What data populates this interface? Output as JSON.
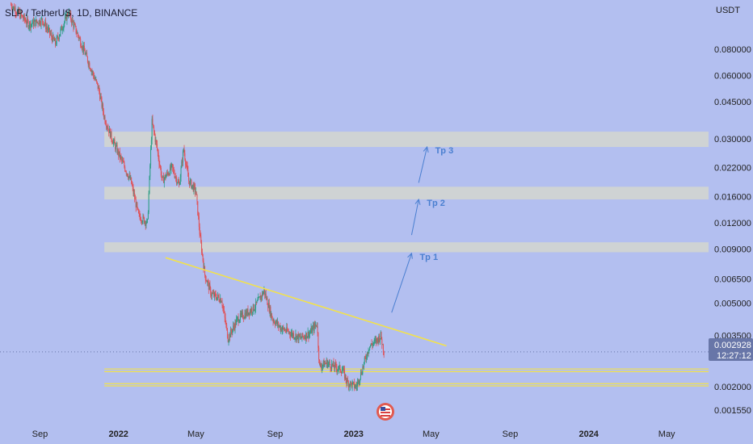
{
  "header": {
    "title": "SLP / TetherUS, 1D, BINANCE"
  },
  "currency_label": "USDT",
  "current_price": "0.002928",
  "countdown": "12:27:12",
  "flag_icon": "us-flag-icon",
  "colors": {
    "background": "#b3bff0",
    "up": "#2e9e86",
    "down": "#e05258",
    "zone": "#d4d6cf",
    "trendline": "#f3e24a",
    "arrow": "#4a7fd0",
    "price_tag": "#6876a8"
  },
  "chart_data": {
    "type": "candlestick",
    "title": "SLP / TetherUS, 1D, BINANCE",
    "y_scale": "log",
    "ylim": [
      0.00137,
      0.137
    ],
    "y_ticks": [
      "0.080000",
      "0.060000",
      "0.045000",
      "0.030000",
      "0.022000",
      "0.016000",
      "0.012000",
      "0.009000",
      "0.006500",
      "0.005000",
      "0.003500",
      "0.002000",
      "0.001550"
    ],
    "x_ticks": [
      "Sep",
      "2022",
      "May",
      "Sep",
      "2023",
      "May",
      "Sep",
      "2024",
      "May"
    ],
    "bold_x_ticks": [
      "2022",
      "2023",
      "2024"
    ],
    "xlim": [
      "2021-07-01",
      "2024-07-05"
    ],
    "price_path": [
      [
        "2021-07-18",
        0.13
      ],
      [
        "2021-08-15",
        0.105
      ],
      [
        "2021-09-05",
        0.11
      ],
      [
        "2021-09-25",
        0.085
      ],
      [
        "2021-10-15",
        0.12
      ],
      [
        "2021-11-01",
        0.09
      ],
      [
        "2021-11-15",
        0.07
      ],
      [
        "2021-12-01",
        0.052
      ],
      [
        "2021-12-10",
        0.038
      ],
      [
        "2021-12-22",
        0.03
      ],
      [
        "2022-01-05",
        0.024
      ],
      [
        "2022-01-20",
        0.019
      ],
      [
        "2022-02-01",
        0.013
      ],
      [
        "2022-02-15",
        0.012
      ],
      [
        "2022-02-22",
        0.036
      ],
      [
        "2022-03-01",
        0.028
      ],
      [
        "2022-03-10",
        0.019
      ],
      [
        "2022-03-25",
        0.022
      ],
      [
        "2022-04-05",
        0.018
      ],
      [
        "2022-04-12",
        0.027
      ],
      [
        "2022-04-20",
        0.019
      ],
      [
        "2022-05-01",
        0.017
      ],
      [
        "2022-05-08",
        0.01
      ],
      [
        "2022-05-15",
        0.0068
      ],
      [
        "2022-05-25",
        0.0055
      ],
      [
        "2022-06-10",
        0.0052
      ],
      [
        "2022-06-20",
        0.0034
      ],
      [
        "2022-07-05",
        0.0042
      ],
      [
        "2022-07-20",
        0.0045
      ],
      [
        "2022-08-01",
        0.0048
      ],
      [
        "2022-08-15",
        0.0057
      ],
      [
        "2022-08-28",
        0.0042
      ],
      [
        "2022-09-10",
        0.0038
      ],
      [
        "2022-09-25",
        0.0036
      ],
      [
        "2022-10-10",
        0.0034
      ],
      [
        "2022-10-25",
        0.0036
      ],
      [
        "2022-11-05",
        0.004
      ],
      [
        "2022-11-09",
        0.0025
      ],
      [
        "2022-11-20",
        0.0026
      ],
      [
        "2022-12-01",
        0.0025
      ],
      [
        "2022-12-15",
        0.0024
      ],
      [
        "2022-12-22",
        0.0021
      ],
      [
        "2023-01-05",
        0.002
      ],
      [
        "2023-01-12",
        0.0023
      ],
      [
        "2023-01-25",
        0.0031
      ],
      [
        "2023-02-05",
        0.0033
      ],
      [
        "2023-02-12",
        0.0035
      ],
      [
        "2023-02-17",
        0.002928
      ]
    ],
    "horizontal_zones": [
      {
        "label": "",
        "low": 0.0275,
        "high": 0.0325
      },
      {
        "label": "",
        "low": 0.0155,
        "high": 0.0178
      },
      {
        "label": "",
        "low": 0.0087,
        "high": 0.0097
      }
    ],
    "support_lines": [
      0.00243,
      0.00236,
      0.00207,
      0.00202
    ],
    "trendline": [
      [
        "2022-03-15",
        0.0082
      ],
      [
        "2023-05-25",
        0.00313
      ]
    ],
    "targets": [
      {
        "label": "Tp 1",
        "from": [
          "2023-03-01",
          0.0045
        ],
        "to": [
          "2023-04-01",
          0.0086
        ]
      },
      {
        "label": "Tp 2",
        "from": [
          "2023-04-01",
          0.0105
        ],
        "to": [
          "2023-04-12",
          0.0155
        ]
      },
      {
        "label": "Tp 3",
        "from": [
          "2023-04-12",
          0.0186
        ],
        "to": [
          "2023-04-25",
          0.0275
        ]
      }
    ]
  }
}
